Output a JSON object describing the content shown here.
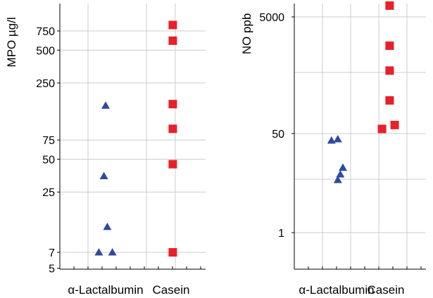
{
  "chart_data": [
    {
      "type": "scatter",
      "ylabel": "MPO µg/l",
      "xlabel": "",
      "scale": "log",
      "ylim": [
        5,
        1000
      ],
      "categories": [
        "α-Lactalbumin",
        "Casein"
      ],
      "yticks": [
        {
          "value": 750,
          "label": "750"
        },
        {
          "value": 500,
          "label": "500"
        },
        {
          "value": 250,
          "label": "250"
        },
        {
          "value": 75,
          "label": "75"
        },
        {
          "value": 50,
          "label": "50"
        },
        {
          "value": 25,
          "label": "25"
        },
        {
          "value": 7,
          "label": "7"
        },
        {
          "value": 5,
          "label": "5"
        }
      ],
      "grid": true,
      "series": [
        {
          "category": "α-Lactalbumin",
          "marker": "triangle",
          "color": "#2e4aa0",
          "x": [
            1.0,
            0.95,
            1.05,
            0.8,
            1.2
          ],
          "values": [
            155,
            35,
            12,
            7,
            7
          ]
        },
        {
          "category": "Casein",
          "marker": "square",
          "color": "#e8202a",
          "x": [
            1.05,
            1.05,
            1.05,
            1.05,
            1.05,
            1.05
          ],
          "values": [
            850,
            610,
            160,
            95,
            45,
            7
          ]
        }
      ]
    },
    {
      "type": "scatter",
      "ylabel": "NO ppb",
      "xlabel": "",
      "scale": "log",
      "ylim": [
        0.2,
        8000
      ],
      "categories": [
        "α-Lactalbumin",
        "Casein"
      ],
      "yticks": [
        {
          "value": 5000,
          "label": "5000"
        },
        {
          "value": 50,
          "label": "50"
        },
        {
          "value": 1,
          "label": "1"
        }
      ],
      "grid": true,
      "series": [
        {
          "category": "α-Lactalbumin",
          "marker": "triangle",
          "color": "#2e4aa0",
          "x": [
            0.8,
            1.05,
            1.25,
            1.05,
            1.15
          ],
          "values": [
            38,
            40,
            13,
            8,
            10
          ]
        },
        {
          "category": "Casein",
          "marker": "square",
          "color": "#e8202a",
          "x": [
            1.15,
            1.15,
            1.15,
            1.15,
            1.35,
            0.85
          ],
          "values": [
            7800,
            1600,
            600,
            185,
            70,
            60
          ]
        }
      ]
    }
  ]
}
